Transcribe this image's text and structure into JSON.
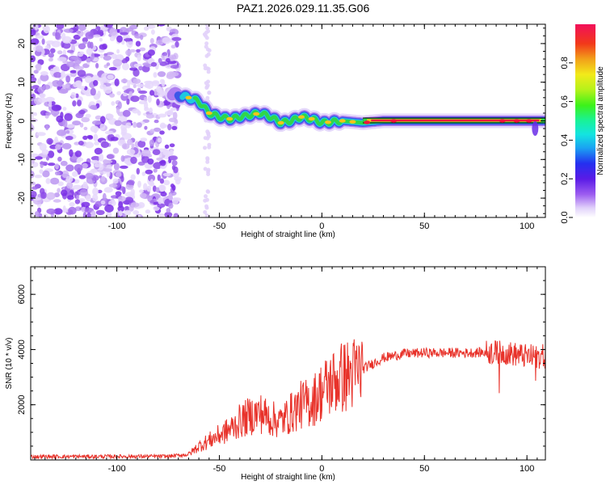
{
  "title": "PAZ1.2026.029.11.35.G06",
  "chart_data": [
    {
      "type": "heatmap",
      "xlabel": "Height of straight line (km)",
      "ylabel": "Frequency (Hz)",
      "xlim": [
        -142,
        109
      ],
      "ylim": [
        -25,
        25
      ],
      "xticks": [
        -100,
        -50,
        0,
        50,
        100
      ],
      "yticks": [
        -20,
        -10,
        0,
        10,
        20
      ],
      "colorbar": {
        "label": "Normalized spectral amplitude",
        "range": [
          0,
          1
        ],
        "ticks": [
          "0.0",
          "0.2",
          "0.4",
          "0.6",
          "0.8"
        ],
        "tick_values": [
          0.0,
          0.2,
          0.4,
          0.6,
          0.8
        ]
      },
      "ridge": {
        "description_points_x": [
          -73,
          -65,
          -60,
          -55,
          -50,
          -45,
          -40,
          -35,
          -30,
          -25,
          -20,
          -15,
          -10,
          -5,
          0,
          10,
          20,
          30,
          40,
          100,
          109
        ],
        "description_points_y": [
          7,
          6,
          5,
          2,
          1,
          0.5,
          1,
          1.5,
          2,
          1,
          -0.5,
          0,
          1,
          0.5,
          -0.5,
          0,
          -0.5,
          0,
          0,
          0,
          0
        ]
      }
    },
    {
      "type": "line",
      "xlabel": "Height of straight line (km)",
      "ylabel": "SNR (10 * v/v)",
      "xlim": [
        -142,
        109
      ],
      "ylim": [
        0,
        7000
      ],
      "xticks": [
        -100,
        -50,
        0,
        50,
        100
      ],
      "yticks": [
        2000,
        4000,
        6000
      ],
      "series_color": "#e8322a",
      "envelope_x": [
        -142,
        -75,
        -65,
        -60,
        -55,
        -50,
        -45,
        -40,
        -35,
        -30,
        -25,
        -20,
        -15,
        -10,
        -5,
        0,
        5,
        10,
        15,
        20,
        25,
        30,
        40,
        50,
        60,
        70,
        80,
        90,
        100,
        105,
        109
      ],
      "envelope_y": [
        120,
        130,
        200,
        500,
        700,
        900,
        1100,
        1400,
        1600,
        1700,
        1500,
        1400,
        1700,
        2000,
        2100,
        2500,
        2800,
        3000,
        3100,
        3300,
        3500,
        3700,
        3850,
        3880,
        3880,
        3880,
        3900,
        3880,
        3750,
        3750,
        3750
      ]
    }
  ]
}
